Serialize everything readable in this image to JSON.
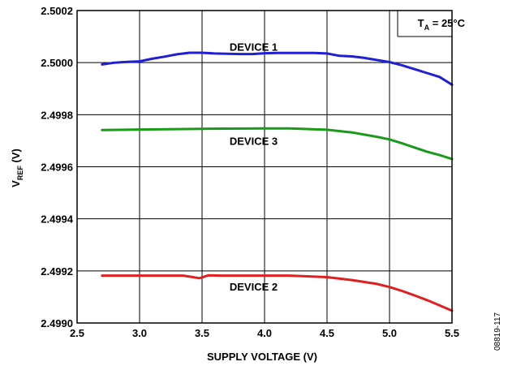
{
  "chart_data": {
    "type": "line",
    "xlabel": "SUPPLY VOLTAGE (V)",
    "ylabel": {
      "main": "V",
      "sub": "REF",
      "rest": " (V)"
    },
    "xlim": [
      2.5,
      5.5
    ],
    "ylim": [
      2.499,
      2.5002
    ],
    "x_ticks": [
      "2.5",
      "3.0",
      "3.5",
      "4.0",
      "4.5",
      "5.0",
      "5.5"
    ],
    "y_ticks": [
      "2.5002",
      "2.5000",
      "2.4998",
      "2.4996",
      "2.4994",
      "2.4992",
      "2.4990"
    ],
    "grid": true,
    "annotation": {
      "main": "T",
      "sub": "A",
      "rest": " = 25°C"
    },
    "series": [
      {
        "name": "DEVICE 1",
        "color": "#1f1fd6",
        "x": [
          2.7,
          2.8,
          2.9,
          3.0,
          3.1,
          3.2,
          3.3,
          3.4,
          3.5,
          3.6,
          3.7,
          3.8,
          3.9,
          4.0,
          4.1,
          4.2,
          4.3,
          4.4,
          4.5,
          4.6,
          4.7,
          4.8,
          4.9,
          5.0,
          5.1,
          5.2,
          5.3,
          5.4,
          5.5
        ],
        "y": [
          2.499993,
          2.5,
          2.500003,
          2.500005,
          2.500015,
          2.500023,
          2.500032,
          2.500038,
          2.500038,
          2.500035,
          2.500034,
          2.500033,
          2.500033,
          2.500036,
          2.500037,
          2.500037,
          2.500037,
          2.500037,
          2.500035,
          2.500026,
          2.500024,
          2.500018,
          2.50001,
          2.500002,
          2.49999,
          2.499975,
          2.49996,
          2.499945,
          2.499915
        ]
      },
      {
        "name": "DEVICE 3",
        "color": "#1a9a1a",
        "x": [
          2.7,
          3.0,
          3.5,
          4.0,
          4.2,
          4.5,
          4.7,
          4.9,
          5.0,
          5.1,
          5.2,
          5.3,
          5.4,
          5.5
        ],
        "y": [
          2.499741,
          2.499743,
          2.499746,
          2.499747,
          2.499747,
          2.499742,
          2.499732,
          2.499715,
          2.499705,
          2.49969,
          2.499674,
          2.499658,
          2.499645,
          2.49963
        ]
      },
      {
        "name": "DEVICE 2",
        "color": "#e02020",
        "x": [
          2.7,
          3.0,
          3.2,
          3.35,
          3.48,
          3.55,
          3.65,
          4.0,
          4.2,
          4.5,
          4.7,
          4.9,
          5.0,
          5.1,
          5.2,
          5.3,
          5.4,
          5.5
        ],
        "y": [
          2.499182,
          2.499182,
          2.499182,
          2.499182,
          2.499172,
          2.499183,
          2.499182,
          2.499182,
          2.499182,
          2.499176,
          2.499165,
          2.49915,
          2.499138,
          2.499123,
          2.499106,
          2.499088,
          2.499068,
          2.499047
        ]
      }
    ],
    "series_labels": [
      {
        "text": "DEVICE 1",
        "x": 3.72,
        "y": 2.500045
      },
      {
        "text": "DEVICE 3",
        "x": 3.72,
        "y": 2.499684
      },
      {
        "text": "DEVICE 2",
        "x": 3.72,
        "y": 2.499125
      }
    ],
    "figure_id": "08819-117"
  }
}
